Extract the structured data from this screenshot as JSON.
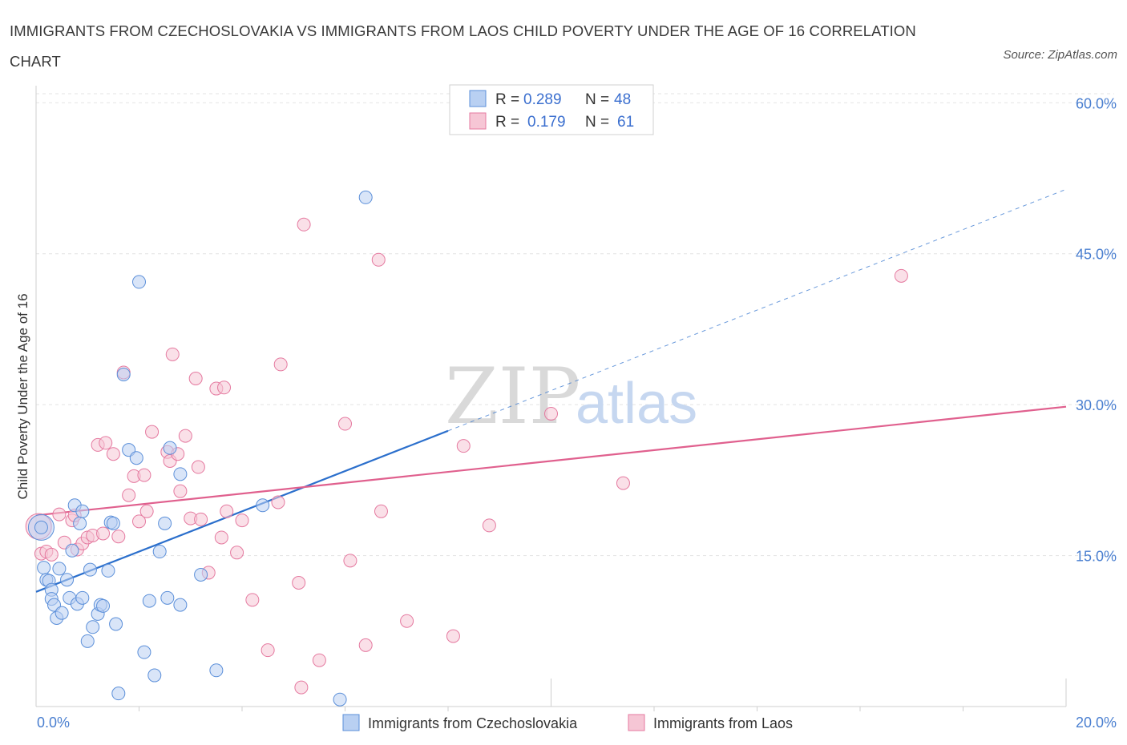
{
  "title": "IMMIGRANTS FROM CZECHOSLOVAKIA VS IMMIGRANTS FROM LAOS CHILD POVERTY UNDER THE AGE OF 16 CORRELATION CHART",
  "source": "Source: ZipAtlas.com",
  "watermark": {
    "zip": "ZIP",
    "atlas": "atlas"
  },
  "colors": {
    "blue": "#5b8fd9",
    "blue_fill": "#b9d0f2",
    "pink": "#e57aa0",
    "pink_fill": "#f6c6d5",
    "blue_line": "#2b6fcc",
    "pink_line": "#e0608e",
    "tick_blue": "#4a7fd0"
  },
  "legend": {
    "rows": [
      {
        "r_label": "R =",
        "r_value": "0.289",
        "n_label": "N =",
        "n_value": "48"
      },
      {
        "r_label": "R =",
        "r_value": "0.179",
        "n_label": "N =",
        "n_value": "61"
      }
    ]
  },
  "chart_data": {
    "type": "scatter",
    "title": "IMMIGRANTS FROM CZECHOSLOVAKIA VS IMMIGRANTS FROM LAOS CHILD POVERTY UNDER THE AGE OF 16 CORRELATION CHART",
    "xlabel": "",
    "ylabel": "Child Poverty Under the Age of 16",
    "xlim": [
      0,
      20
    ],
    "ylim": [
      0,
      60
    ],
    "x_ticks": [
      "0.0%",
      "20.0%"
    ],
    "y_ticks": [
      "15.0%",
      "30.0%",
      "45.0%",
      "60.0%"
    ],
    "y_tick_values": [
      15,
      30,
      45,
      60
    ],
    "grid": true,
    "series": [
      {
        "name": "Immigrants from Czechoslovakia",
        "color": "#5b8fd9",
        "R": 0.289,
        "N": 48,
        "trend": {
          "x0": 0,
          "y0": 11.4,
          "x1": 8.0,
          "y1": 27.4,
          "dashed_to_x": 20,
          "dashed_to_y": 51.4
        },
        "points": [
          [
            0.1,
            17.8
          ],
          [
            0.15,
            13.8
          ],
          [
            0.2,
            12.6
          ],
          [
            0.25,
            12.5
          ],
          [
            0.3,
            11.6
          ],
          [
            0.3,
            10.7
          ],
          [
            0.35,
            10.1
          ],
          [
            0.4,
            8.8
          ],
          [
            0.45,
            13.7
          ],
          [
            0.5,
            9.3
          ],
          [
            0.6,
            12.6
          ],
          [
            0.65,
            10.8
          ],
          [
            0.7,
            15.5
          ],
          [
            0.75,
            20.0
          ],
          [
            0.8,
            10.2
          ],
          [
            0.85,
            18.2
          ],
          [
            0.9,
            10.8
          ],
          [
            0.9,
            19.4
          ],
          [
            1.0,
            6.5
          ],
          [
            1.05,
            13.6
          ],
          [
            1.1,
            7.9
          ],
          [
            1.2,
            9.2
          ],
          [
            1.25,
            10.1
          ],
          [
            1.3,
            10.0
          ],
          [
            1.4,
            13.5
          ],
          [
            1.45,
            18.3
          ],
          [
            1.5,
            18.2
          ],
          [
            1.55,
            8.2
          ],
          [
            1.6,
            1.3
          ],
          [
            1.7,
            33.0
          ],
          [
            1.8,
            25.5
          ],
          [
            1.95,
            24.7
          ],
          [
            2.0,
            42.2
          ],
          [
            2.1,
            5.4
          ],
          [
            2.2,
            10.5
          ],
          [
            2.3,
            3.1
          ],
          [
            2.4,
            15.4
          ],
          [
            2.5,
            18.2
          ],
          [
            2.55,
            10.8
          ],
          [
            2.6,
            25.7
          ],
          [
            2.8,
            23.1
          ],
          [
            2.8,
            10.1
          ],
          [
            3.2,
            13.1
          ],
          [
            3.5,
            3.6
          ],
          [
            4.4,
            20.0
          ],
          [
            5.9,
            0.7
          ],
          [
            6.4,
            50.6
          ],
          [
            0.1,
            17.8
          ]
        ]
      },
      {
        "name": "Immigrants from Laos",
        "color": "#e57aa0",
        "R": 0.179,
        "N": 61,
        "trend": {
          "x0": 0,
          "y0": 19.0,
          "x1": 20,
          "y1": 29.8
        },
        "points": [
          [
            0.05,
            17.9
          ],
          [
            0.1,
            15.2
          ],
          [
            0.2,
            15.4
          ],
          [
            0.3,
            15.1
          ],
          [
            0.45,
            19.1
          ],
          [
            0.55,
            16.3
          ],
          [
            0.7,
            18.5
          ],
          [
            0.75,
            19.0
          ],
          [
            0.8,
            15.6
          ],
          [
            0.9,
            16.2
          ],
          [
            1.0,
            16.8
          ],
          [
            1.1,
            17.0
          ],
          [
            1.2,
            26.0
          ],
          [
            1.3,
            17.2
          ],
          [
            1.35,
            26.2
          ],
          [
            1.5,
            25.1
          ],
          [
            1.6,
            16.9
          ],
          [
            1.7,
            33.2
          ],
          [
            1.8,
            21.0
          ],
          [
            1.9,
            22.9
          ],
          [
            2.0,
            18.4
          ],
          [
            2.1,
            23.0
          ],
          [
            2.15,
            19.4
          ],
          [
            2.25,
            27.3
          ],
          [
            2.55,
            25.3
          ],
          [
            2.6,
            24.4
          ],
          [
            2.65,
            35.0
          ],
          [
            2.75,
            25.1
          ],
          [
            2.8,
            21.4
          ],
          [
            2.9,
            26.9
          ],
          [
            3.0,
            18.7
          ],
          [
            3.1,
            32.6
          ],
          [
            3.15,
            23.8
          ],
          [
            3.2,
            18.6
          ],
          [
            3.35,
            13.3
          ],
          [
            3.5,
            31.6
          ],
          [
            3.6,
            16.8
          ],
          [
            3.65,
            31.7
          ],
          [
            3.7,
            19.4
          ],
          [
            3.9,
            15.3
          ],
          [
            4.0,
            18.5
          ],
          [
            4.2,
            10.6
          ],
          [
            4.5,
            5.6
          ],
          [
            4.7,
            20.3
          ],
          [
            4.75,
            34.0
          ],
          [
            5.1,
            12.3
          ],
          [
            5.2,
            47.9
          ],
          [
            5.15,
            1.9
          ],
          [
            5.5,
            4.6
          ],
          [
            6.0,
            28.1
          ],
          [
            6.1,
            14.5
          ],
          [
            6.4,
            6.1
          ],
          [
            6.65,
            44.4
          ],
          [
            6.7,
            19.4
          ],
          [
            7.2,
            8.5
          ],
          [
            8.1,
            7.0
          ],
          [
            8.3,
            25.9
          ],
          [
            8.8,
            18.0
          ],
          [
            10.0,
            29.1
          ],
          [
            11.4,
            22.2
          ],
          [
            16.8,
            42.8
          ]
        ]
      }
    ]
  }
}
